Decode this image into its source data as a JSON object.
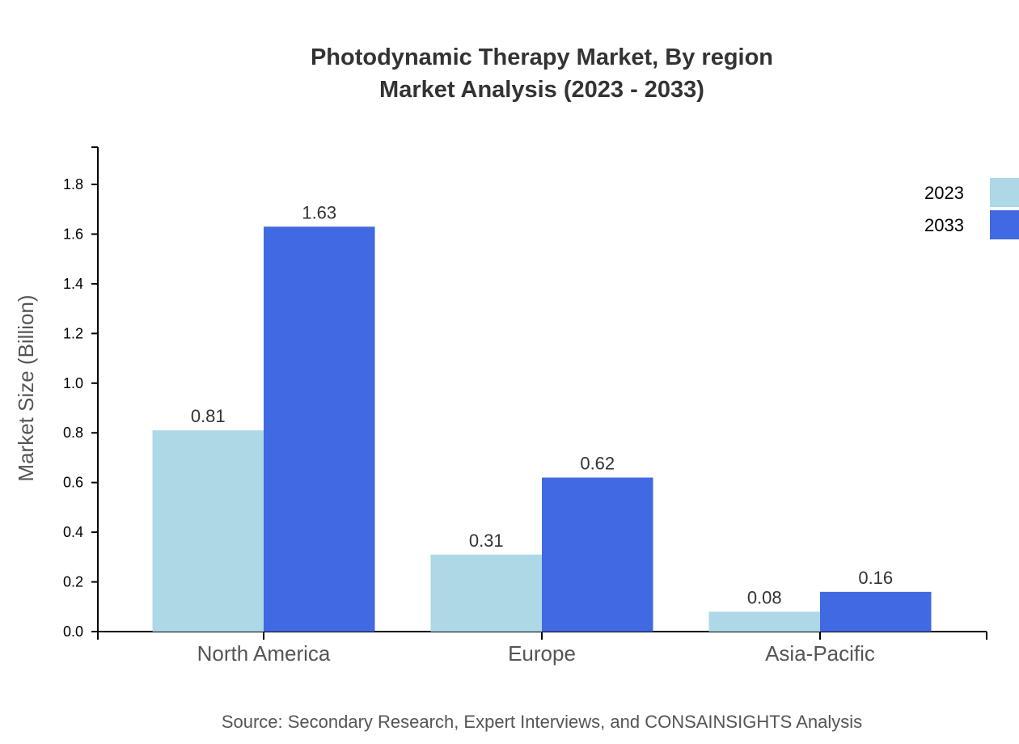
{
  "chart_data": {
    "type": "bar",
    "title": "Photodynamic Therapy Market, By region",
    "subtitle": "Market Analysis (2023 - 2033)",
    "xlabel": "",
    "ylabel": "Market Size (Billion)",
    "categories": [
      "North America",
      "Europe",
      "Asia-Pacific"
    ],
    "series": [
      {
        "name": "2023",
        "values": [
          0.81,
          0.31,
          0.08
        ],
        "color": "#ADD8E6"
      },
      {
        "name": "2033",
        "values": [
          1.63,
          0.62,
          0.16
        ],
        "color": "#4169E1"
      }
    ],
    "ylim": [
      0,
      1.95
    ],
    "yticks": [
      "0.0",
      "0.2",
      "0.4",
      "0.6",
      "0.8",
      "1.0",
      "1.2",
      "1.4",
      "1.6",
      "1.8"
    ],
    "grid": false,
    "legend_placement": "top-right",
    "source": "Source: Secondary Research, Expert Interviews, and CONSAINSIGHTS Analysis"
  }
}
